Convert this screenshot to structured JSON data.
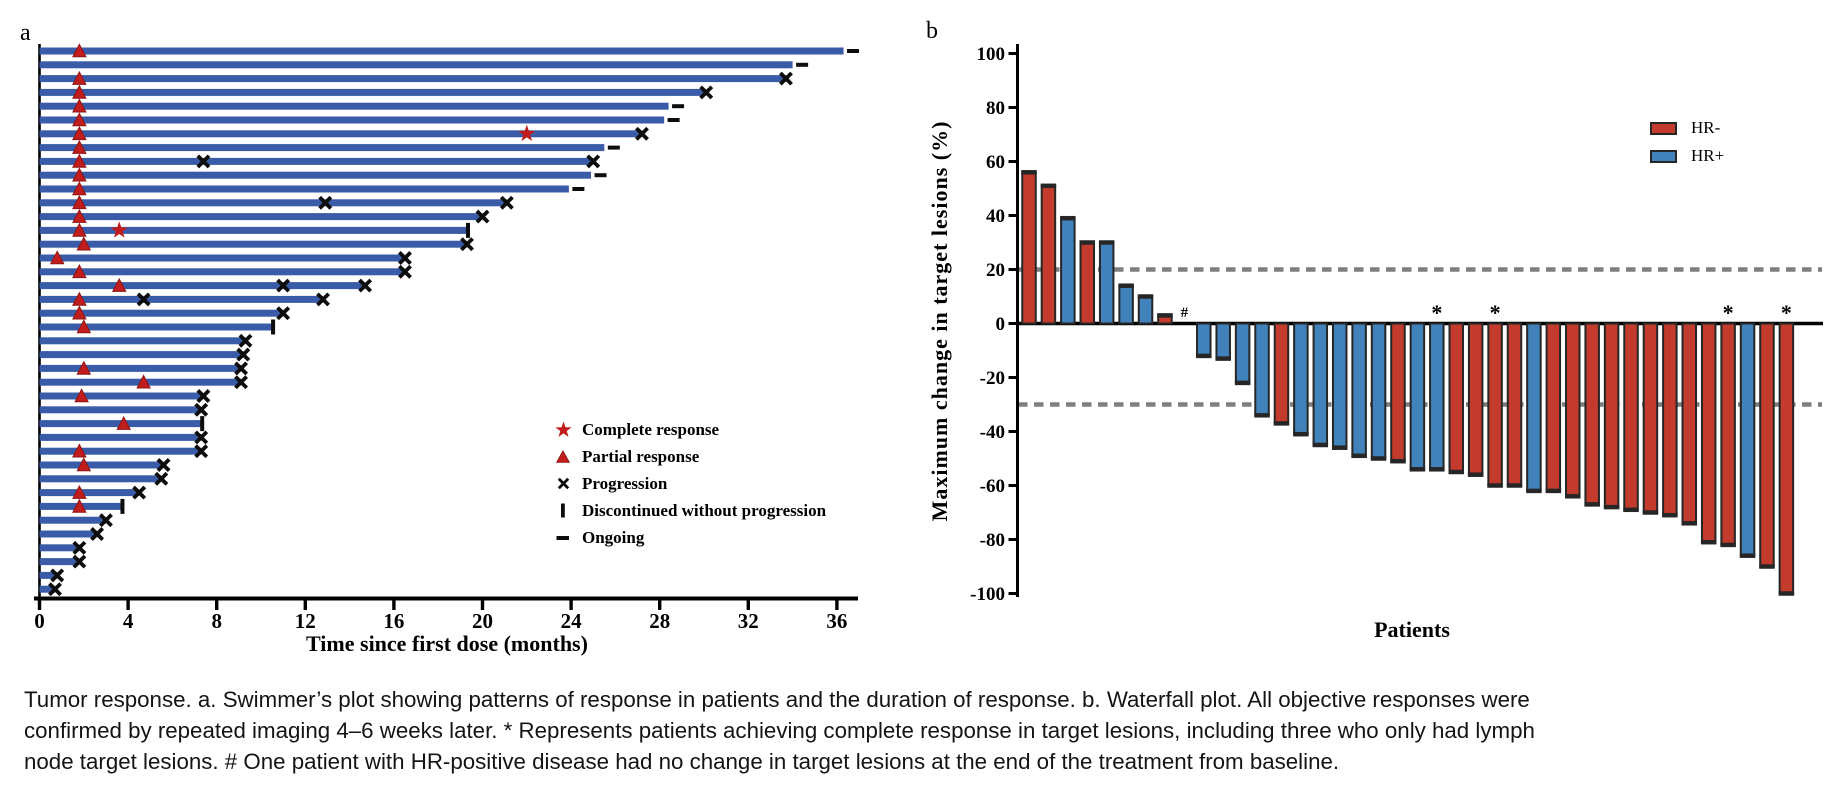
{
  "figure": {
    "panel_a_label": "a",
    "panel_b_label": "b"
  },
  "chart_data": [
    {
      "type": "bar",
      "subtype": "swimmer",
      "xlabel": "Time since first dose (months)",
      "x_ticks": [
        0,
        4,
        8,
        12,
        16,
        20,
        24,
        28,
        32,
        36
      ],
      "xlim": [
        0,
        37
      ],
      "grid": "off",
      "legend_position": "lower-right-inside",
      "legend": [
        {
          "symbol": "star",
          "label": "Complete response"
        },
        {
          "symbol": "triangle",
          "label": "Partial response"
        },
        {
          "symbol": "x",
          "label": "Progression"
        },
        {
          "symbol": "vbar",
          "label": "Discontinued without progression"
        },
        {
          "symbol": "dash",
          "label": "Ongoing"
        }
      ],
      "patients": [
        {
          "months": 36.3,
          "end": "ongoing",
          "partial": 1.8
        },
        {
          "months": 34.0,
          "end": "ongoing"
        },
        {
          "months": 33.7,
          "end": "progression",
          "partial": 1.8
        },
        {
          "months": 30.1,
          "end": "progression",
          "partial": 1.8
        },
        {
          "months": 28.4,
          "end": "ongoing",
          "partial": 1.8
        },
        {
          "months": 28.2,
          "end": "ongoing",
          "partial": 1.8
        },
        {
          "months": 27.2,
          "end": "progression",
          "partial": 1.8,
          "complete": 22.0
        },
        {
          "months": 25.5,
          "end": "ongoing",
          "partial": 1.8
        },
        {
          "months": 25.0,
          "end": "progression",
          "partial": 1.8,
          "mid_progression": [
            7.4
          ]
        },
        {
          "months": 24.9,
          "end": "ongoing",
          "partial": 1.8
        },
        {
          "months": 23.9,
          "end": "ongoing",
          "partial": 1.8
        },
        {
          "months": 21.1,
          "end": "progression",
          "partial": 1.8,
          "mid_progression": [
            12.9
          ]
        },
        {
          "months": 20.0,
          "end": "progression",
          "partial": 1.8
        },
        {
          "months": 19.3,
          "end": "discontinued",
          "partial": 1.8,
          "complete": 3.6
        },
        {
          "months": 19.3,
          "end": "progression",
          "partial": 2.0
        },
        {
          "months": 16.5,
          "end": "progression",
          "partial": 0.8
        },
        {
          "months": 16.5,
          "end": "progression",
          "partial": 1.8
        },
        {
          "months": 14.7,
          "end": "progression",
          "partial": 3.6,
          "mid_progression": [
            11.0
          ]
        },
        {
          "months": 12.8,
          "end": "progression",
          "partial": 1.8,
          "mid_progression": [
            4.7
          ]
        },
        {
          "months": 11.0,
          "end": "progression",
          "partial": 1.8
        },
        {
          "months": 10.5,
          "end": "discontinued",
          "partial": 2.0
        },
        {
          "months": 9.3,
          "end": "progression"
        },
        {
          "months": 9.2,
          "end": "progression"
        },
        {
          "months": 9.1,
          "end": "progression",
          "partial": 2.0
        },
        {
          "months": 9.1,
          "end": "progression",
          "partial": 4.7
        },
        {
          "months": 7.4,
          "end": "progression",
          "partial": 1.9
        },
        {
          "months": 7.3,
          "end": "progression"
        },
        {
          "months": 7.3,
          "end": "discontinued",
          "partial": 3.8
        },
        {
          "months": 7.3,
          "end": "progression"
        },
        {
          "months": 7.3,
          "end": "progression",
          "partial": 1.8
        },
        {
          "months": 5.6,
          "end": "progression",
          "partial": 2.0
        },
        {
          "months": 5.5,
          "end": "progression"
        },
        {
          "months": 4.5,
          "end": "progression",
          "partial": 1.8
        },
        {
          "months": 3.7,
          "end": "discontinued",
          "partial": 1.8
        },
        {
          "months": 3.0,
          "end": "progression"
        },
        {
          "months": 2.6,
          "end": "progression"
        },
        {
          "months": 1.8,
          "end": "progression"
        },
        {
          "months": 1.8,
          "end": "progression"
        },
        {
          "months": 0.8,
          "end": "progression"
        },
        {
          "months": 0.7,
          "end": "progression"
        }
      ]
    },
    {
      "type": "bar",
      "subtype": "waterfall",
      "xlabel": "Patients",
      "ylabel": "Maximum change in target lesions (%)",
      "y_ticks": [
        100,
        80,
        60,
        40,
        20,
        0,
        -20,
        -40,
        -60,
        -80,
        -100
      ],
      "ylim": [
        -100,
        100
      ],
      "grid": "off",
      "reference_lines": [
        20,
        -30
      ],
      "legend_position": "upper-right-inside",
      "legend": [
        {
          "label": "HR-",
          "color": "#C23B2C"
        },
        {
          "label": "HR+",
          "color": "#4182BA"
        }
      ],
      "bars": [
        {
          "value": 56,
          "group": "HR-"
        },
        {
          "value": 51,
          "group": "HR-"
        },
        {
          "value": 39,
          "group": "HR+"
        },
        {
          "value": 30,
          "group": "HR-"
        },
        {
          "value": 30,
          "group": "HR+"
        },
        {
          "value": 14,
          "group": "HR+"
        },
        {
          "value": 10,
          "group": "HR+"
        },
        {
          "value": 3,
          "group": "HR-"
        },
        {
          "value": 0,
          "group": "HR+",
          "mark": "#"
        },
        {
          "value": -12,
          "group": "HR+"
        },
        {
          "value": -13,
          "group": "HR+"
        },
        {
          "value": -22,
          "group": "HR+"
        },
        {
          "value": -34,
          "group": "HR+"
        },
        {
          "value": -37,
          "group": "HR-"
        },
        {
          "value": -41,
          "group": "HR+"
        },
        {
          "value": -45,
          "group": "HR+"
        },
        {
          "value": -46,
          "group": "HR+"
        },
        {
          "value": -49,
          "group": "HR+"
        },
        {
          "value": -50,
          "group": "HR+"
        },
        {
          "value": -51,
          "group": "HR-"
        },
        {
          "value": -54,
          "group": "HR+"
        },
        {
          "value": -54,
          "group": "HR+",
          "mark": "*"
        },
        {
          "value": -55,
          "group": "HR-"
        },
        {
          "value": -56,
          "group": "HR-"
        },
        {
          "value": -60,
          "group": "HR-",
          "mark": "*"
        },
        {
          "value": -60,
          "group": "HR-"
        },
        {
          "value": -62,
          "group": "HR+"
        },
        {
          "value": -62,
          "group": "HR-"
        },
        {
          "value": -64,
          "group": "HR-"
        },
        {
          "value": -67,
          "group": "HR-"
        },
        {
          "value": -68,
          "group": "HR-"
        },
        {
          "value": -69,
          "group": "HR-"
        },
        {
          "value": -70,
          "group": "HR-"
        },
        {
          "value": -71,
          "group": "HR-"
        },
        {
          "value": -74,
          "group": "HR-"
        },
        {
          "value": -81,
          "group": "HR-"
        },
        {
          "value": -82,
          "group": "HR-",
          "mark": "*"
        },
        {
          "value": -86,
          "group": "HR+"
        },
        {
          "value": -90,
          "group": "HR-"
        },
        {
          "value": -100,
          "group": "HR-",
          "mark": "*"
        }
      ]
    }
  ],
  "colors": {
    "swimmer_bar": "#3A5CA8",
    "response_red": "#C11D1D",
    "hr_negative": "#C23B2C",
    "hr_positive": "#4182BA",
    "bar_outline": "#262626",
    "reference_dash": "#7E7E7E",
    "axis": "#000000",
    "mark_black": "#0D0D0D"
  },
  "caption": {
    "lines": [
      "Tumor response. a. Swimmer’s plot showing patterns of response in patients and the duration of response. b. Waterfall plot. All objective responses were",
      "confirmed by repeated imaging 4–6 weeks later. * Represents patients achieving complete response in target lesions, including three who only had lymph",
      "node target lesions. # One patient with HR-positive disease had no change in target lesions at the end of the treatment from baseline."
    ]
  }
}
